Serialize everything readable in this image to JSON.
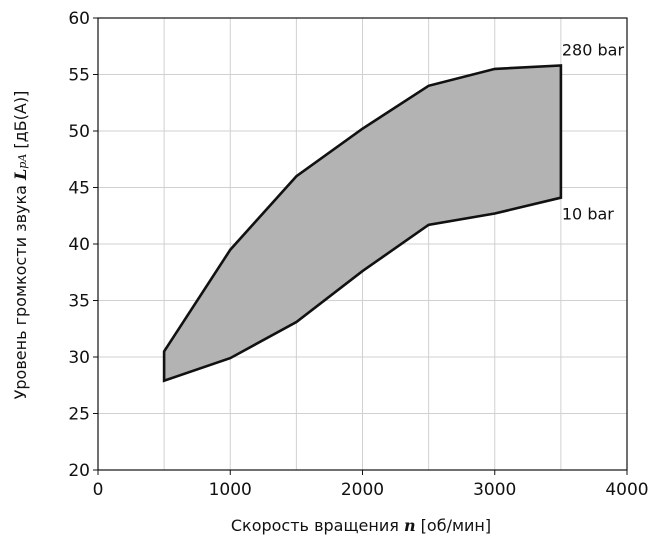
{
  "chart_data": {
    "type": "area",
    "xlabel_prefix": "Скорость вращения ",
    "xlabel_var": "n",
    "xlabel_suffix": " [об/мин]",
    "ylabel_prefix": "Уровень громкости звука ",
    "ylabel_var": "L",
    "ylabel_sub": "pA",
    "ylabel_suffix": " [дБ(А)]",
    "xlim": [
      0,
      4000
    ],
    "ylim": [
      20,
      60
    ],
    "xticks": [
      0,
      1000,
      2000,
      3000,
      4000
    ],
    "yticks": [
      20,
      25,
      30,
      35,
      40,
      45,
      50,
      55,
      60
    ],
    "grid": true,
    "fill_color": "#b3b3b3",
    "series": [
      {
        "name": "280 bar",
        "x": [
          500,
          1000,
          1500,
          2000,
          2500,
          3000,
          3500
        ],
        "y": [
          30.5,
          39.5,
          46.0,
          50.2,
          54.0,
          55.5,
          55.8
        ]
      },
      {
        "name": "10 bar",
        "x": [
          500,
          1000,
          1500,
          2000,
          2500,
          3000,
          3500
        ],
        "y": [
          27.9,
          29.9,
          33.1,
          37.6,
          41.7,
          42.7,
          44.1
        ]
      }
    ]
  }
}
